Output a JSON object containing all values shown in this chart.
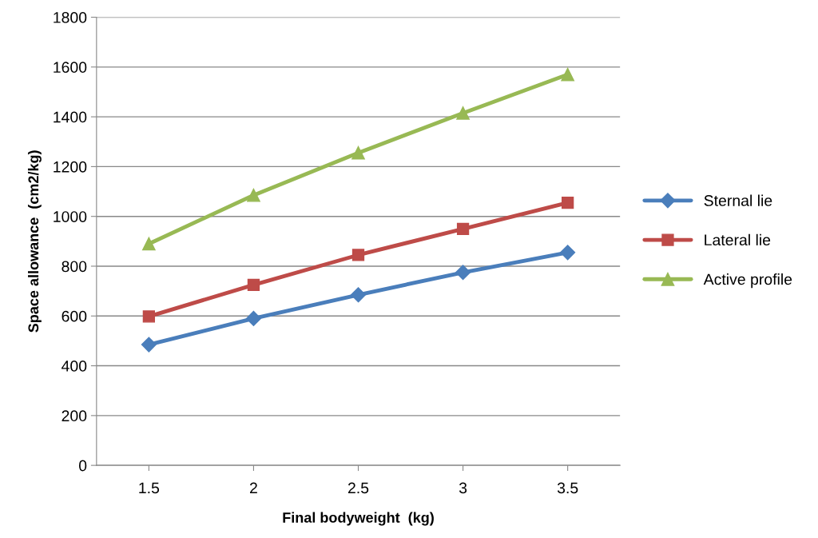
{
  "chart_data": {
    "type": "line",
    "xlabel": "Final bodyweight  (kg)",
    "ylabel": "Space allowance  (cm2/kg)",
    "categories": [
      "1.5",
      "2",
      "2.5",
      "3",
      "3.5"
    ],
    "series": [
      {
        "name": "Sternal lie",
        "color": "#4a7ebb",
        "marker": "diamond",
        "values": [
          485,
          590,
          685,
          775,
          855
        ]
      },
      {
        "name": "Lateral lie",
        "color": "#be4b48",
        "marker": "square",
        "values": [
          598,
          725,
          845,
          950,
          1055
        ]
      },
      {
        "name": "Active profile",
        "color": "#98b954",
        "marker": "triangle",
        "values": [
          890,
          1085,
          1255,
          1415,
          1570
        ]
      }
    ],
    "ylim": [
      0,
      1800
    ],
    "yticks": [
      0,
      200,
      400,
      600,
      800,
      1000,
      1200,
      1400,
      1600,
      1800
    ],
    "grid": "y",
    "legend": "right",
    "line_style": "solid"
  }
}
